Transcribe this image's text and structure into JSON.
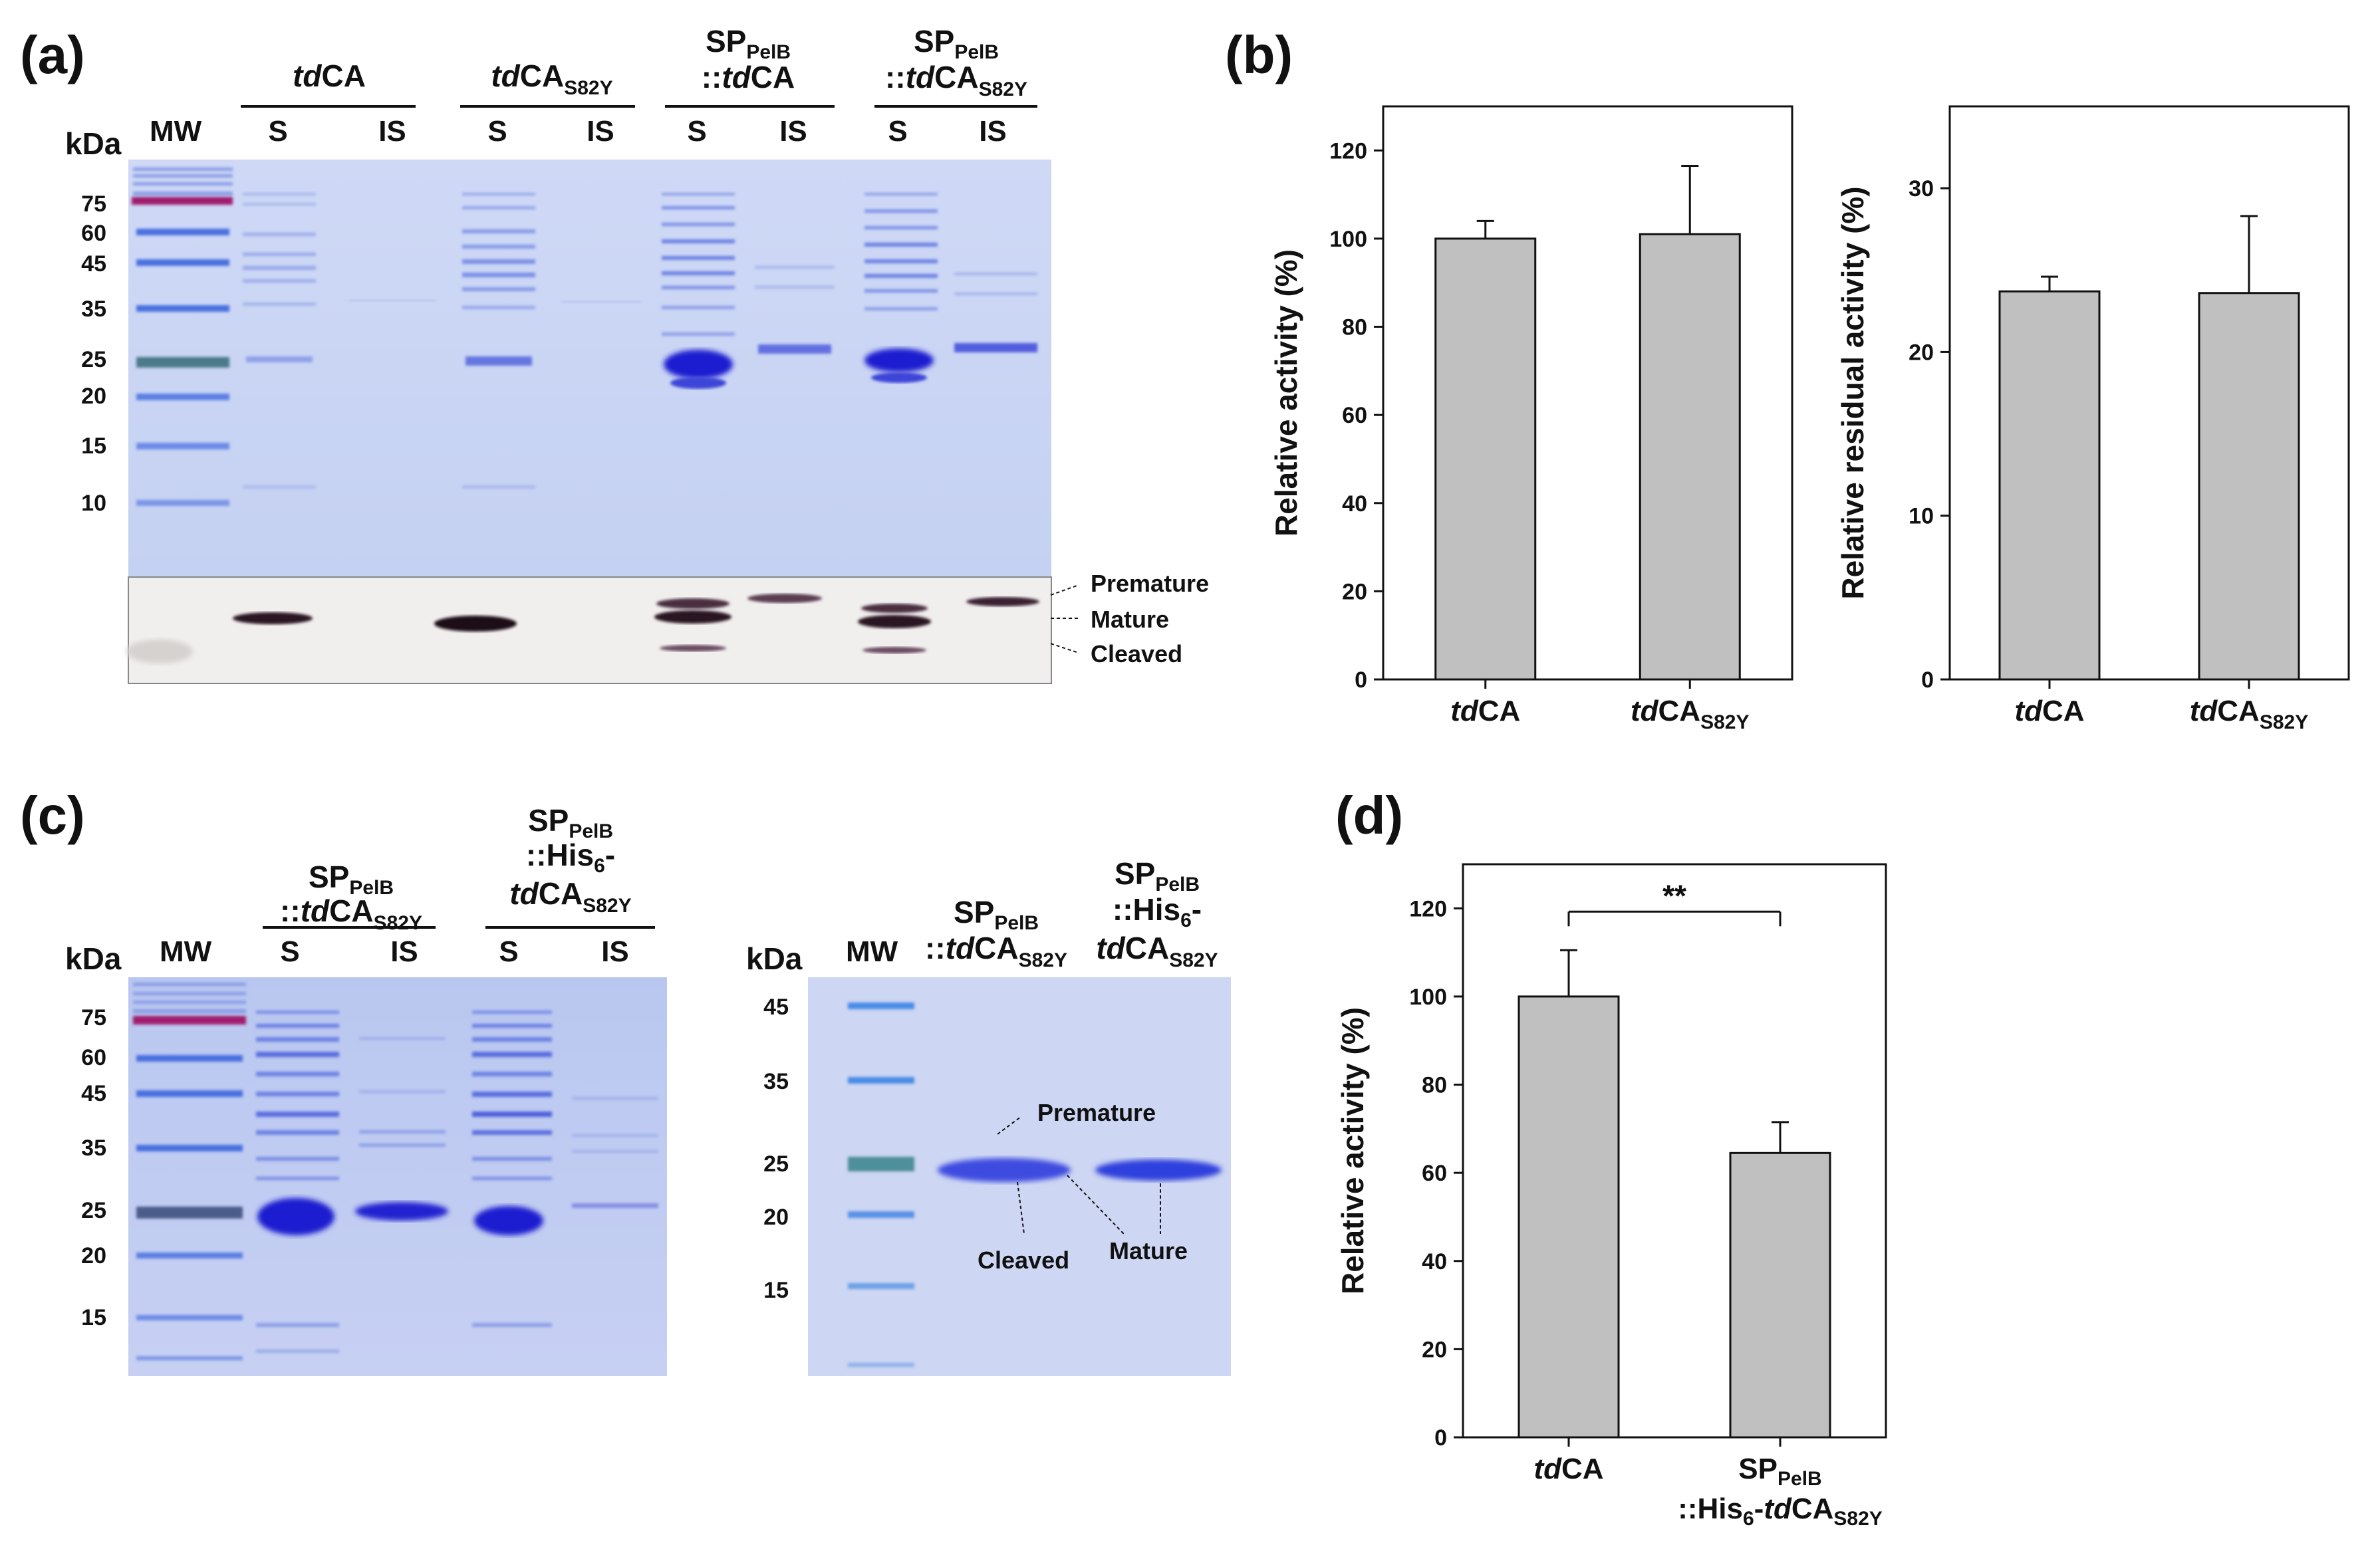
{
  "panels": {
    "a": {
      "letter": "(a)",
      "kda": "kDa",
      "mw_label": "MW",
      "mw_ticks": [
        "75",
        "60",
        "45",
        "35",
        "25",
        "20",
        "15",
        "10"
      ],
      "groups": [
        {
          "name": "tdCA",
          "sub": ""
        },
        {
          "name": "tdCA",
          "sub": "S82Y"
        },
        {
          "line1": "SP",
          "line1_sub": "PelB",
          "line2": "::tdCA"
        },
        {
          "line1": "SP",
          "line1_sub": "PelB",
          "line2": "::tdCA",
          "line2_sub": "S82Y"
        }
      ],
      "lanes": [
        "S",
        "IS",
        "S",
        "IS",
        "S",
        "IS",
        "S",
        "IS"
      ],
      "blot_annotations": [
        "Premature",
        "Mature",
        "Cleaved"
      ]
    },
    "b": {
      "letter": "(b)"
    },
    "c": {
      "letter": "(c)",
      "kda": "kDa",
      "mw_label": "MW",
      "left_ticks": [
        "75",
        "60",
        "45",
        "35",
        "25",
        "20",
        "15"
      ],
      "right_ticks": [
        "45",
        "35",
        "25",
        "20",
        "15"
      ],
      "group1": {
        "l1": "SP",
        "l1_sub": "PelB",
        "l2": "::tdCA",
        "l2_sub": "S82Y"
      },
      "group2": {
        "l1": "SP",
        "l1_sub": "PelB",
        "l2": "::His",
        "l2_sub": "6",
        "l2_tail": "-",
        "l3": "tdCA",
        "l3_sub": "S82Y"
      },
      "lanes": [
        "S",
        "IS",
        "S",
        "IS"
      ],
      "gel_annotations": [
        "Premature",
        "Cleaved",
        "Mature"
      ]
    },
    "d": {
      "letter": "(d)",
      "significance": "**"
    }
  },
  "chart_data": [
    {
      "type": "bar",
      "panel": "b-left",
      "categories": [
        "tdCA",
        "tdCA_S82Y"
      ],
      "values": [
        100,
        101
      ],
      "errors": [
        4,
        15.5
      ],
      "ylabel": "Relative activity (%)",
      "xlabel": "",
      "ylim": [
        0,
        130
      ],
      "yticks": [
        0,
        20,
        40,
        60,
        80,
        100,
        120
      ]
    },
    {
      "type": "bar",
      "panel": "b-right",
      "categories": [
        "tdCA",
        "tdCA_S82Y"
      ],
      "values": [
        23.7,
        23.6
      ],
      "errors": [
        0.9,
        4.7
      ],
      "ylabel": "Relative residual activity (%)",
      "xlabel": "",
      "ylim": [
        0,
        35
      ],
      "yticks": [
        0,
        10,
        20,
        30
      ]
    },
    {
      "type": "bar",
      "panel": "d",
      "categories": [
        "tdCA",
        "SP_PelB::His6-tdCA_S82Y"
      ],
      "values": [
        100,
        64.5
      ],
      "errors": [
        10.5,
        7
      ],
      "ylabel": "Relative activity (%)",
      "xlabel": "",
      "ylim": [
        0,
        130
      ],
      "yticks": [
        0,
        20,
        40,
        60,
        80,
        100,
        120
      ]
    }
  ]
}
